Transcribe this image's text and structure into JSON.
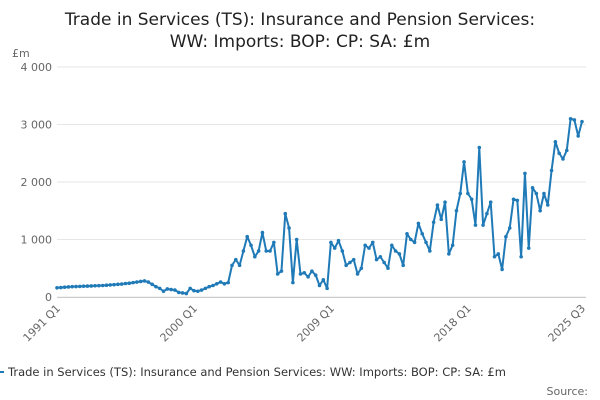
{
  "chart_data": {
    "type": "line",
    "title": [
      "Trade in Services (TS): Insurance and Pension Services:",
      "WW: Imports: BOP: CP: SA: £m"
    ],
    "y_label": "£m",
    "source": "Source:",
    "categories": [
      "1991 Q1",
      null,
      null,
      null,
      null,
      null,
      null,
      null,
      null,
      null,
      null,
      null,
      null,
      null,
      null,
      null,
      null,
      null,
      null,
      null,
      null,
      null,
      null,
      null,
      null,
      null,
      null,
      null,
      null,
      null,
      null,
      null,
      null,
      null,
      null,
      null,
      "2000 Q1",
      null,
      null,
      null,
      null,
      null,
      null,
      null,
      null,
      null,
      null,
      null,
      null,
      null,
      null,
      null,
      null,
      null,
      null,
      null,
      null,
      null,
      null,
      null,
      null,
      null,
      null,
      null,
      null,
      null,
      null,
      null,
      null,
      null,
      null,
      null,
      "2009 Q1",
      null,
      null,
      null,
      null,
      null,
      null,
      null,
      null,
      null,
      null,
      null,
      null,
      null,
      null,
      null,
      null,
      null,
      null,
      null,
      null,
      null,
      null,
      null,
      null,
      null,
      null,
      null,
      null,
      null,
      null,
      null,
      null,
      null,
      null,
      null,
      "2018 Q1",
      null,
      null,
      null,
      null,
      null,
      null,
      null,
      null,
      null,
      null,
      null,
      null,
      null,
      null,
      null,
      null,
      null,
      null,
      null,
      null,
      null,
      null,
      null,
      null,
      null,
      null,
      null,
      null,
      null,
      "2025 Q3"
    ],
    "series": [
      {
        "name": "Trade in Services (TS): Insurance and Pension Services: WW: Imports: BOP: CP: SA: £m",
        "color": "#1f7ab7",
        "values": [
          160,
          165,
          170,
          175,
          180,
          182,
          185,
          188,
          190,
          192,
          195,
          198,
          200,
          205,
          210,
          215,
          220,
          225,
          235,
          240,
          250,
          260,
          270,
          280,
          260,
          220,
          180,
          150,
          100,
          140,
          130,
          120,
          80,
          70,
          60,
          150,
          110,
          100,
          120,
          150,
          180,
          200,
          230,
          260,
          230,
          250,
          550,
          650,
          550,
          800,
          1050,
          900,
          700,
          800,
          1120,
          800,
          800,
          950,
          400,
          450,
          1450,
          1200,
          250,
          1000,
          400,
          420,
          350,
          450,
          380,
          200,
          300,
          150,
          950,
          850,
          980,
          800,
          550,
          600,
          650,
          400,
          500,
          900,
          850,
          950,
          650,
          700,
          600,
          500,
          900,
          800,
          750,
          550,
          1100,
          1000,
          950,
          1280,
          1100,
          950,
          800,
          1300,
          1600,
          1350,
          1650,
          750,
          900,
          1500,
          1800,
          2350,
          1800,
          1700,
          1250,
          2600,
          1250,
          1450,
          1650,
          700,
          750,
          480,
          1050,
          1200,
          1700,
          1680,
          700,
          2150,
          850,
          1900,
          1800,
          1500,
          1800,
          1600,
          2200,
          2700,
          2500,
          2400,
          2550,
          3100,
          3080,
          2800,
          3050
        ]
      }
    ],
    "ylim": [
      0,
      4000
    ],
    "yticks": [
      0,
      {
        "value": 1000,
        "label": "1 000"
      },
      {
        "value": 2000,
        "label": "2 000"
      },
      {
        "value": 3000,
        "label": "3 000"
      },
      {
        "value": 4000,
        "label": "4 000"
      }
    ],
    "grid": true
  }
}
